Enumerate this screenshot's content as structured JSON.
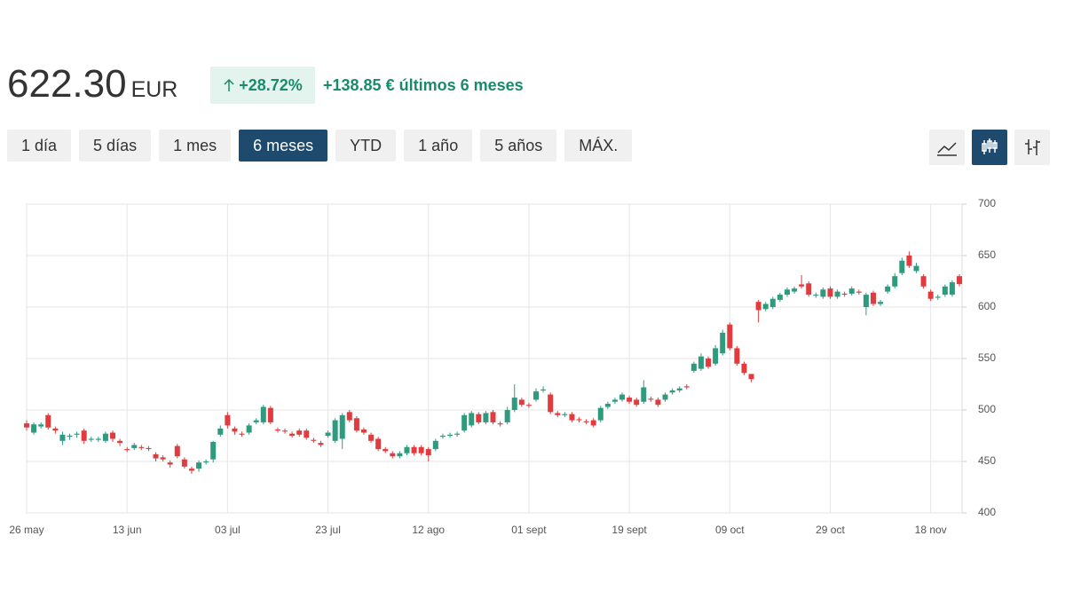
{
  "price": "622.30",
  "currency": "EUR",
  "change_pct": "+28.72%",
  "change_abs": "+138.85 € últimos 6 meses",
  "ranges": [
    "1 día",
    "5 días",
    "1 mes",
    "6 meses",
    "YTD",
    "1 año",
    "5 años",
    "MÁX."
  ],
  "chart_data": {
    "type": "candlestick",
    "categories": [
      "26 may",
      null,
      null,
      null,
      null,
      null,
      null,
      null,
      null,
      null,
      null,
      null,
      null,
      null,
      "13 jun",
      null,
      null,
      null,
      null,
      null,
      null,
      null,
      null,
      null,
      null,
      null,
      null,
      null,
      "03 jul",
      null,
      null,
      null,
      null,
      null,
      null,
      null,
      null,
      null,
      null,
      null,
      null,
      null,
      "23 jul",
      null,
      null,
      null,
      null,
      null,
      null,
      null,
      null,
      null,
      null,
      null,
      null,
      null,
      "12 ago",
      null,
      null,
      null,
      null,
      null,
      null,
      null,
      null,
      null,
      null,
      null,
      null,
      null,
      "01 sept",
      null,
      null,
      null,
      null,
      null,
      null,
      null,
      null,
      null,
      null,
      null,
      null,
      null,
      "19 sept",
      null,
      null,
      null,
      null,
      null,
      null,
      null,
      null,
      null,
      null,
      null,
      null,
      null,
      "09 oct",
      null,
      null,
      null,
      null,
      null,
      null,
      null,
      null,
      null,
      null,
      null,
      null,
      null,
      "29 oct",
      null,
      null,
      null,
      null,
      null,
      null,
      null,
      null,
      null,
      null,
      null,
      null,
      null,
      "18 nov",
      null,
      null,
      null,
      null
    ],
    "open": [
      487,
      478,
      484,
      495,
      482,
      470,
      474,
      476,
      480,
      471,
      471,
      470,
      478,
      470,
      462,
      463,
      464,
      463,
      457,
      454,
      449,
      465,
      452,
      443,
      443,
      449,
      452,
      476,
      495,
      482,
      477,
      478,
      488,
      488,
      502,
      481,
      480,
      477,
      480,
      480,
      471,
      468,
      475,
      470,
      472,
      498,
      492,
      481,
      476,
      472,
      462,
      458,
      455,
      458,
      464,
      464,
      462,
      462,
      474,
      475,
      476,
      480,
      485,
      496,
      488,
      498,
      487,
      488,
      500,
      510,
      505,
      510,
      519,
      515,
      497,
      495,
      496,
      491,
      489,
      490,
      490,
      503,
      508,
      510,
      512,
      510,
      508,
      511,
      510,
      510,
      517,
      519,
      523,
      538,
      540,
      550,
      545,
      555,
      583,
      560,
      545,
      535,
      605,
      598,
      600,
      607,
      612,
      615,
      622,
      623,
      611,
      610,
      618,
      610,
      613,
      613,
      615,
      600,
      614,
      603,
      615,
      620,
      633,
      650,
      635,
      630,
      615,
      609,
      612,
      612,
      630
    ],
    "high": [
      490,
      488,
      488,
      497,
      484,
      479,
      477,
      479,
      482,
      474,
      474,
      479,
      480,
      472,
      464,
      468,
      466,
      465,
      459,
      456,
      451,
      467,
      454,
      445,
      451,
      452,
      470,
      485,
      498,
      484,
      479,
      487,
      492,
      505,
      504,
      483,
      482,
      479,
      482,
      482,
      473,
      470,
      480,
      492,
      497,
      500,
      494,
      483,
      478,
      474,
      464,
      460,
      460,
      466,
      466,
      466,
      464,
      472,
      477,
      478,
      479,
      497,
      499,
      498,
      499,
      500,
      489,
      503,
      525,
      512,
      507,
      521,
      523,
      517,
      499,
      498,
      498,
      493,
      491,
      492,
      504,
      508,
      512,
      517,
      514,
      512,
      529,
      513,
      512,
      517,
      521,
      523,
      525,
      547,
      555,
      552,
      563,
      578,
      585,
      562,
      547,
      533,
      607,
      605,
      610,
      614,
      619,
      620,
      631,
      625,
      614,
      619,
      620,
      617,
      615,
      620,
      617,
      614,
      616,
      607,
      622,
      633,
      648,
      654,
      643,
      632,
      617,
      612,
      622,
      626,
      632
    ],
    "low": [
      480,
      476,
      482,
      481,
      477,
      466,
      471,
      473,
      467,
      469,
      469,
      468,
      469,
      465,
      459,
      461,
      461,
      460,
      450,
      450,
      444,
      453,
      443,
      438,
      440,
      447,
      449,
      474,
      482,
      476,
      474,
      476,
      486,
      486,
      486,
      478,
      477,
      473,
      474,
      471,
      468,
      464,
      473,
      468,
      462,
      488,
      478,
      476,
      468,
      460,
      458,
      453,
      453,
      456,
      456,
      456,
      450,
      460,
      472,
      473,
      474,
      478,
      483,
      486,
      486,
      486,
      484,
      486,
      498,
      503,
      502,
      508,
      517,
      496,
      493,
      493,
      488,
      488,
      486,
      483,
      488,
      501,
      506,
      508,
      506,
      503,
      506,
      508,
      503,
      508,
      515,
      517,
      520,
      536,
      538,
      540,
      543,
      553,
      558,
      543,
      534,
      527,
      585,
      596,
      598,
      605,
      610,
      613,
      618,
      610,
      609,
      608,
      608,
      608,
      610,
      611,
      612,
      592,
      601,
      601,
      613,
      618,
      631,
      638,
      633,
      618,
      606,
      607,
      610,
      610,
      620
    ],
    "close": [
      483,
      486,
      486,
      483,
      480,
      476,
      475,
      477,
      470,
      472,
      472,
      477,
      472,
      468,
      461,
      466,
      463,
      462,
      453,
      452,
      447,
      455,
      445,
      441,
      449,
      450,
      469,
      482,
      485,
      479,
      476,
      485,
      490,
      503,
      488,
      480,
      479,
      475,
      476,
      473,
      470,
      466,
      478,
      490,
      495,
      490,
      480,
      478,
      470,
      462,
      460,
      455,
      458,
      464,
      458,
      458,
      456,
      470,
      475,
      476,
      477,
      495,
      497,
      488,
      497,
      488,
      486,
      500,
      512,
      505,
      504,
      518,
      520,
      498,
      495,
      496,
      490,
      490,
      488,
      485,
      502,
      506,
      510,
      515,
      508,
      505,
      522,
      510,
      505,
      515,
      519,
      521,
      522,
      545,
      552,
      542,
      560,
      575,
      560,
      545,
      536,
      530,
      597,
      603,
      608,
      612,
      617,
      618,
      620,
      612,
      612,
      617,
      610,
      615,
      612,
      618,
      614,
      612,
      603,
      605,
      620,
      630,
      645,
      640,
      640,
      620,
      608,
      610,
      620,
      624,
      622.3
    ],
    "up_color": "#2e9b7f",
    "down_color": "#e03c3f",
    "ylim": [
      400,
      700
    ],
    "yticks": [
      400,
      450,
      500,
      550,
      600,
      650,
      700
    ],
    "grid": true
  }
}
